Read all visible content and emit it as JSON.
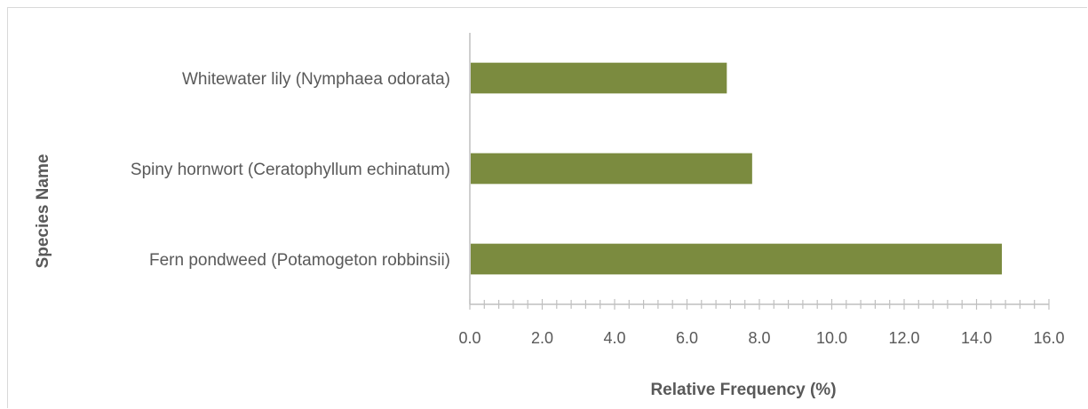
{
  "chart_data": {
    "type": "bar",
    "orientation": "horizontal",
    "title": "",
    "xlabel": "Relative Frequency (%)",
    "ylabel": "Species Name",
    "categories": [
      "Whitewater lily (Nymphaea odorata)",
      "Spiny hornwort (Ceratophyllum echinatum)",
      "Fern pondweed (Potamogeton robbinsii)"
    ],
    "values": [
      7.1,
      7.8,
      14.7
    ],
    "xlim": [
      0,
      16
    ],
    "x_ticks": [
      "0.0",
      "2.0",
      "4.0",
      "6.0",
      "8.0",
      "10.0",
      "12.0",
      "14.0",
      "16.0"
    ],
    "x_minor_step": 0.4,
    "grid": false,
    "legend": "none",
    "bar_color": "#7b8b3f",
    "axis_color": "#bfbfbf",
    "text_color": "#595959"
  }
}
